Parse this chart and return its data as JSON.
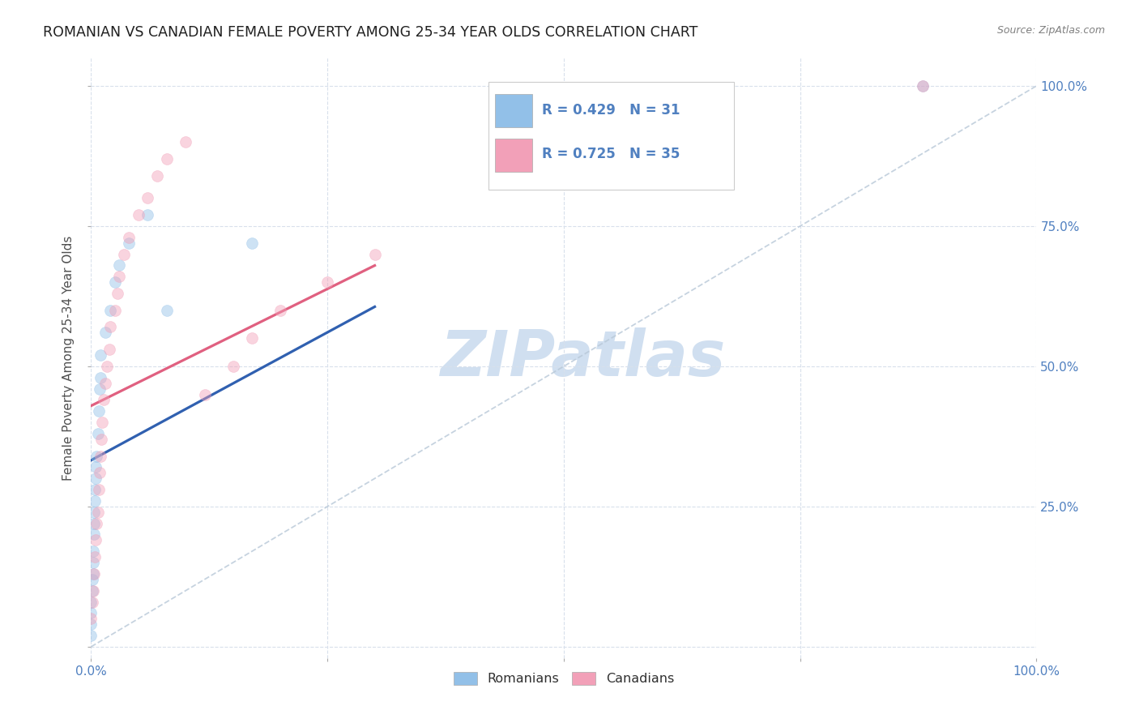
{
  "title": "ROMANIAN VS CANADIAN FEMALE POVERTY AMONG 25-34 YEAR OLDS CORRELATION CHART",
  "source": "Source: ZipAtlas.com",
  "ylabel": "Female Poverty Among 25-34 Year Olds",
  "xlim": [
    0,
    1.0
  ],
  "ylim": [
    -0.02,
    1.05
  ],
  "r_romanian": 0.429,
  "n_romanian": 31,
  "r_canadian": 0.725,
  "n_canadian": 35,
  "romanian_color": "#92C0E8",
  "canadian_color": "#F2A0B8",
  "regression_romanian_color": "#3060B0",
  "regression_canadian_color": "#E06080",
  "diagonal_color": "#B8C8D8",
  "watermark_color": "#D0DFF0",
  "tick_label_color": "#5080C0",
  "title_color": "#202020",
  "axis_label_color": "#505050",
  "bg_color": "#FFFFFF",
  "grid_color": "#D8E0EC",
  "romanian_x": [
    0.0,
    0.0,
    0.0,
    0.0,
    0.001,
    0.001,
    0.002,
    0.002,
    0.002,
    0.003,
    0.003,
    0.003,
    0.004,
    0.004,
    0.005,
    0.005,
    0.006,
    0.007,
    0.008,
    0.009,
    0.01,
    0.01,
    0.015,
    0.02,
    0.025,
    0.03,
    0.04,
    0.06,
    0.08,
    0.17,
    0.88
  ],
  "romanian_y": [
    0.02,
    0.04,
    0.06,
    0.08,
    0.1,
    0.12,
    0.13,
    0.15,
    0.17,
    0.2,
    0.22,
    0.24,
    0.26,
    0.28,
    0.3,
    0.32,
    0.34,
    0.38,
    0.42,
    0.46,
    0.48,
    0.52,
    0.56,
    0.6,
    0.65,
    0.68,
    0.72,
    0.77,
    0.6,
    0.72,
    1.0
  ],
  "canadian_x": [
    0.0,
    0.001,
    0.002,
    0.003,
    0.004,
    0.005,
    0.006,
    0.007,
    0.008,
    0.009,
    0.01,
    0.011,
    0.012,
    0.013,
    0.015,
    0.017,
    0.019,
    0.02,
    0.025,
    0.028,
    0.03,
    0.035,
    0.04,
    0.05,
    0.06,
    0.07,
    0.08,
    0.1,
    0.12,
    0.15,
    0.17,
    0.2,
    0.25,
    0.3,
    0.88
  ],
  "canadian_y": [
    0.05,
    0.08,
    0.1,
    0.13,
    0.16,
    0.19,
    0.22,
    0.24,
    0.28,
    0.31,
    0.34,
    0.37,
    0.4,
    0.44,
    0.47,
    0.5,
    0.53,
    0.57,
    0.6,
    0.63,
    0.66,
    0.7,
    0.73,
    0.77,
    0.8,
    0.84,
    0.87,
    0.9,
    0.45,
    0.5,
    0.55,
    0.6,
    0.65,
    0.7,
    1.0
  ],
  "marker_size": 100,
  "marker_alpha": 0.45
}
